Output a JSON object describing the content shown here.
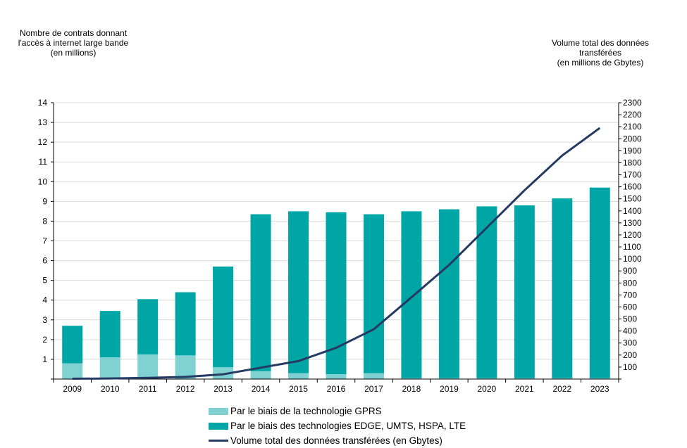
{
  "chart_data": {
    "type": "bar",
    "stacked": true,
    "categories": [
      "2009",
      "2010",
      "2011",
      "2012",
      "2013",
      "2014",
      "2015",
      "2016",
      "2017",
      "2018",
      "2019",
      "2020",
      "2021",
      "2022",
      "2023"
    ],
    "series": [
      {
        "name": "Par le biais de la technologie GPRS",
        "axis": "left",
        "color": "#80d1d1",
        "values": [
          0.8,
          1.1,
          1.25,
          1.2,
          0.6,
          0.4,
          0.3,
          0.25,
          0.3,
          0.05,
          0.05,
          0.05,
          0.05,
          0.05,
          0.05
        ]
      },
      {
        "name": "Par le biais des technologies EDGE, UMTS, HSPA, LTE",
        "axis": "left",
        "color": "#00a6a6",
        "values": [
          1.9,
          2.35,
          2.8,
          3.2,
          5.1,
          7.95,
          8.2,
          8.2,
          8.05,
          8.45,
          8.55,
          8.7,
          8.75,
          9.1,
          9.65
        ]
      },
      {
        "name": "Volume total des données transférées (en Gbytes)",
        "axis": "right",
        "type": "line",
        "color": "#253a63",
        "values": [
          3,
          5,
          10,
          18,
          40,
          95,
          150,
          260,
          415,
          680,
          950,
          1260,
          1570,
          1860,
          2090
        ]
      }
    ],
    "y_left": {
      "title": "Nombre de contrats donnant\nl'accès à internet large bande\n(en millions)",
      "min": 0,
      "max": 14,
      "step": 1,
      "ticks": [
        "1",
        "2",
        "3",
        "4",
        "5",
        "6",
        "7",
        "8",
        "9",
        "10",
        "11",
        "12",
        "13",
        "14"
      ]
    },
    "y_right": {
      "title": "Volume total des données\ntransférées\n(en millions de Gbytes)",
      "min": 0,
      "max": 2300,
      "step": 100,
      "ticks": [
        "100",
        "200",
        "300",
        "400",
        "500",
        "600",
        "700",
        "800",
        "900",
        "1000",
        "1100",
        "1200",
        "1300",
        "1400",
        "1500",
        "1600",
        "1700",
        "1800",
        "1900",
        "2000",
        "2100",
        "2200",
        "2300"
      ]
    },
    "grid": true,
    "legend_position": "bottom"
  }
}
